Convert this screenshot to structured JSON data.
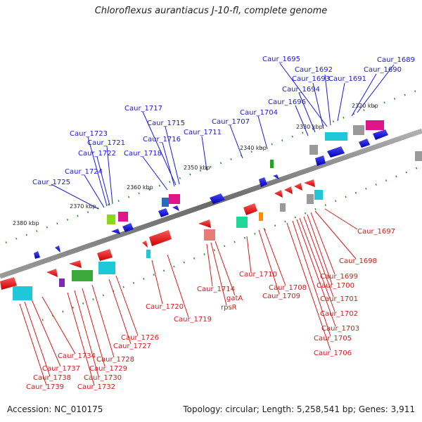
{
  "title": "Chloroflexus aurantiacus J-10-fl, complete genome",
  "footer": {
    "accession": "Accession: NC_010175",
    "topology": "Topology: circular; Length: 5,258,541 bp; Genes: 3,911"
  },
  "scale_labels": [
    "2320 kbp",
    "2330 kbp",
    "2340 kbp",
    "2350 kbp",
    "2360 kbp",
    "2370 kbp",
    "2380 kbp"
  ],
  "top_labels": [
    "Caur_1689",
    "Caur_1690",
    "Caur_1691",
    "Caur_1692",
    "Caur_1693",
    "Caur_1694",
    "Caur_1695",
    "Caur_1696",
    "Caur_1704",
    "Caur_1707",
    "Caur_1711",
    "Caur_1715",
    "Caur_1716",
    "Caur_1717",
    "Caur_1718",
    "Caur_1721",
    "Caur_1722",
    "Caur_1723",
    "Caur_1724",
    "Caur_1725"
  ],
  "bottom_labels": [
    "Caur_1697",
    "Caur_1698",
    "Caur_1699",
    "Caur_1700",
    "Caur_1701",
    "Caur_1702",
    "Caur_1703",
    "Caur_1705",
    "Caur_1706",
    "Caur_1708",
    "Caur_1709",
    "Caur_1710",
    "gatA",
    "rpsR",
    "Caur_1714",
    "Caur_1719",
    "Caur_1720",
    "Caur_1726",
    "Caur_1727",
    "Caur_1728",
    "Caur_1729",
    "Caur_1730",
    "Caur_1732",
    "Caur_1734",
    "Caur_1737",
    "Caur_1738",
    "Caur_1739"
  ],
  "colors": {
    "top_strand": "#1a1ad6",
    "bottom_strand": "#d61a1a",
    "backbone": "#7a7a7a",
    "ticks": "#2e8b2e"
  }
}
